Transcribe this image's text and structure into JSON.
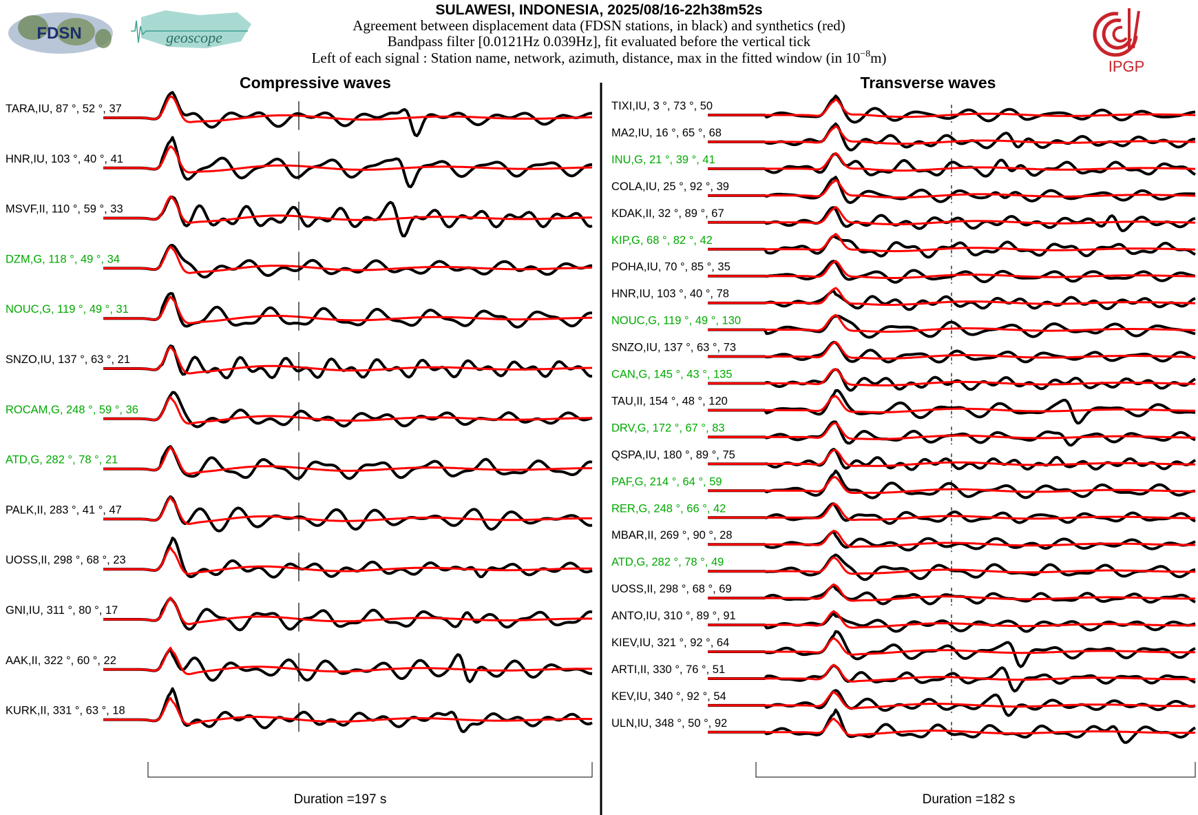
{
  "header": {
    "title": "SULAWESI, INDONESIA, 2025/08/16-22h38m52s",
    "line1": "Agreement between displacement data (FDSN stations, in black) and synthetics (red)",
    "line2": "Bandpass filter [0.0121Hz 0.039Hz], fit evaluated before the vertical tick",
    "line3_prefix": "Left of each signal : Station name, network, azimuth, distance, max in the fitted window (in 10",
    "line3_exp": "−8",
    "line3_suffix": "m)"
  },
  "logos": {
    "fdsn": "FDSN",
    "geoscope": "geoscope",
    "ipgp": "IPGP"
  },
  "colors": {
    "data": "#000000",
    "synthetic": "#ff0000",
    "highlight": "#00aa00",
    "ipgp": "#c8242b"
  },
  "chart_data": [
    {
      "type": "line",
      "title": "Compressive waves",
      "duration_label": "Duration =197 s",
      "stations": [
        {
          "label": "TARA,IU, 87 °, 52 °, 37",
          "green": false
        },
        {
          "label": "HNR,IU, 103 °, 40 °, 41",
          "green": false
        },
        {
          "label": "MSVF,II, 110 °, 59 °, 33",
          "green": false
        },
        {
          "label": "DZM,G, 118 °, 49 °, 34",
          "green": true
        },
        {
          "label": "NOUC,G, 119 °, 49 °, 31",
          "green": true
        },
        {
          "label": "SNZO,IU, 137 °, 63 °, 21",
          "green": false
        },
        {
          "label": "ROCAM,G, 248 °, 59 °, 36",
          "green": true
        },
        {
          "label": "ATD,G, 282 °, 78 °, 21",
          "green": true
        },
        {
          "label": "PALK,II, 283 °, 41 °, 47",
          "green": false
        },
        {
          "label": "UOSS,II, 298 °, 68 °, 23",
          "green": false
        },
        {
          "label": "GNI,IU, 311 °, 80 °, 17",
          "green": false
        },
        {
          "label": "AAK,II, 322 °, 60 °, 22",
          "green": false
        },
        {
          "label": "KURK,II, 331 °, 63 °, 18",
          "green": false
        }
      ]
    },
    {
      "type": "line",
      "title": "Transverse waves",
      "duration_label": "Duration =182 s",
      "stations": [
        {
          "label": "TIXI,IU, 3 °, 73 °, 50",
          "green": false
        },
        {
          "label": "MA2,IU, 16 °, 65 °, 68",
          "green": false
        },
        {
          "label": "INU,G, 21 °, 39 °, 41",
          "green": true
        },
        {
          "label": "COLA,IU, 25 °, 92 °, 39",
          "green": false
        },
        {
          "label": "KDAK,II, 32 °, 89 °, 67",
          "green": false
        },
        {
          "label": "KIP,G, 68 °, 82 °, 42",
          "green": true
        },
        {
          "label": "POHA,IU, 70 °, 85 °, 35",
          "green": false
        },
        {
          "label": "HNR,IU, 103 °, 40 °, 78",
          "green": false
        },
        {
          "label": "NOUC,G, 119 °, 49 °, 130",
          "green": true
        },
        {
          "label": "SNZO,IU, 137 °, 63 °, 73",
          "green": false
        },
        {
          "label": "CAN,G, 145 °, 43 °, 135",
          "green": true
        },
        {
          "label": "TAU,II, 154 °, 48 °, 120",
          "green": false
        },
        {
          "label": "DRV,G, 172 °, 67 °, 83",
          "green": true
        },
        {
          "label": "QSPA,IU, 180 °, 89 °, 75",
          "green": false
        },
        {
          "label": "PAF,G, 214 °, 64 °, 59",
          "green": true
        },
        {
          "label": "RER,G, 248 °, 66 °, 42",
          "green": true
        },
        {
          "label": "MBAR,II, 269 °, 90 °, 28",
          "green": false
        },
        {
          "label": "ATD,G, 282 °, 78 °, 49",
          "green": true
        },
        {
          "label": "UOSS,II, 298 °, 68 °, 69",
          "green": false
        },
        {
          "label": "ANTO,IU, 310 °, 89 °, 91",
          "green": false
        },
        {
          "label": "KIEV,IU, 321 °, 92 °, 64",
          "green": false
        },
        {
          "label": "ARTI,II, 330 °, 76 °, 51",
          "green": false
        },
        {
          "label": "KEV,IU, 340 °, 92 °, 54",
          "green": false
        },
        {
          "label": "ULN,IU, 348 °, 50 °, 92",
          "green": false
        }
      ]
    }
  ]
}
